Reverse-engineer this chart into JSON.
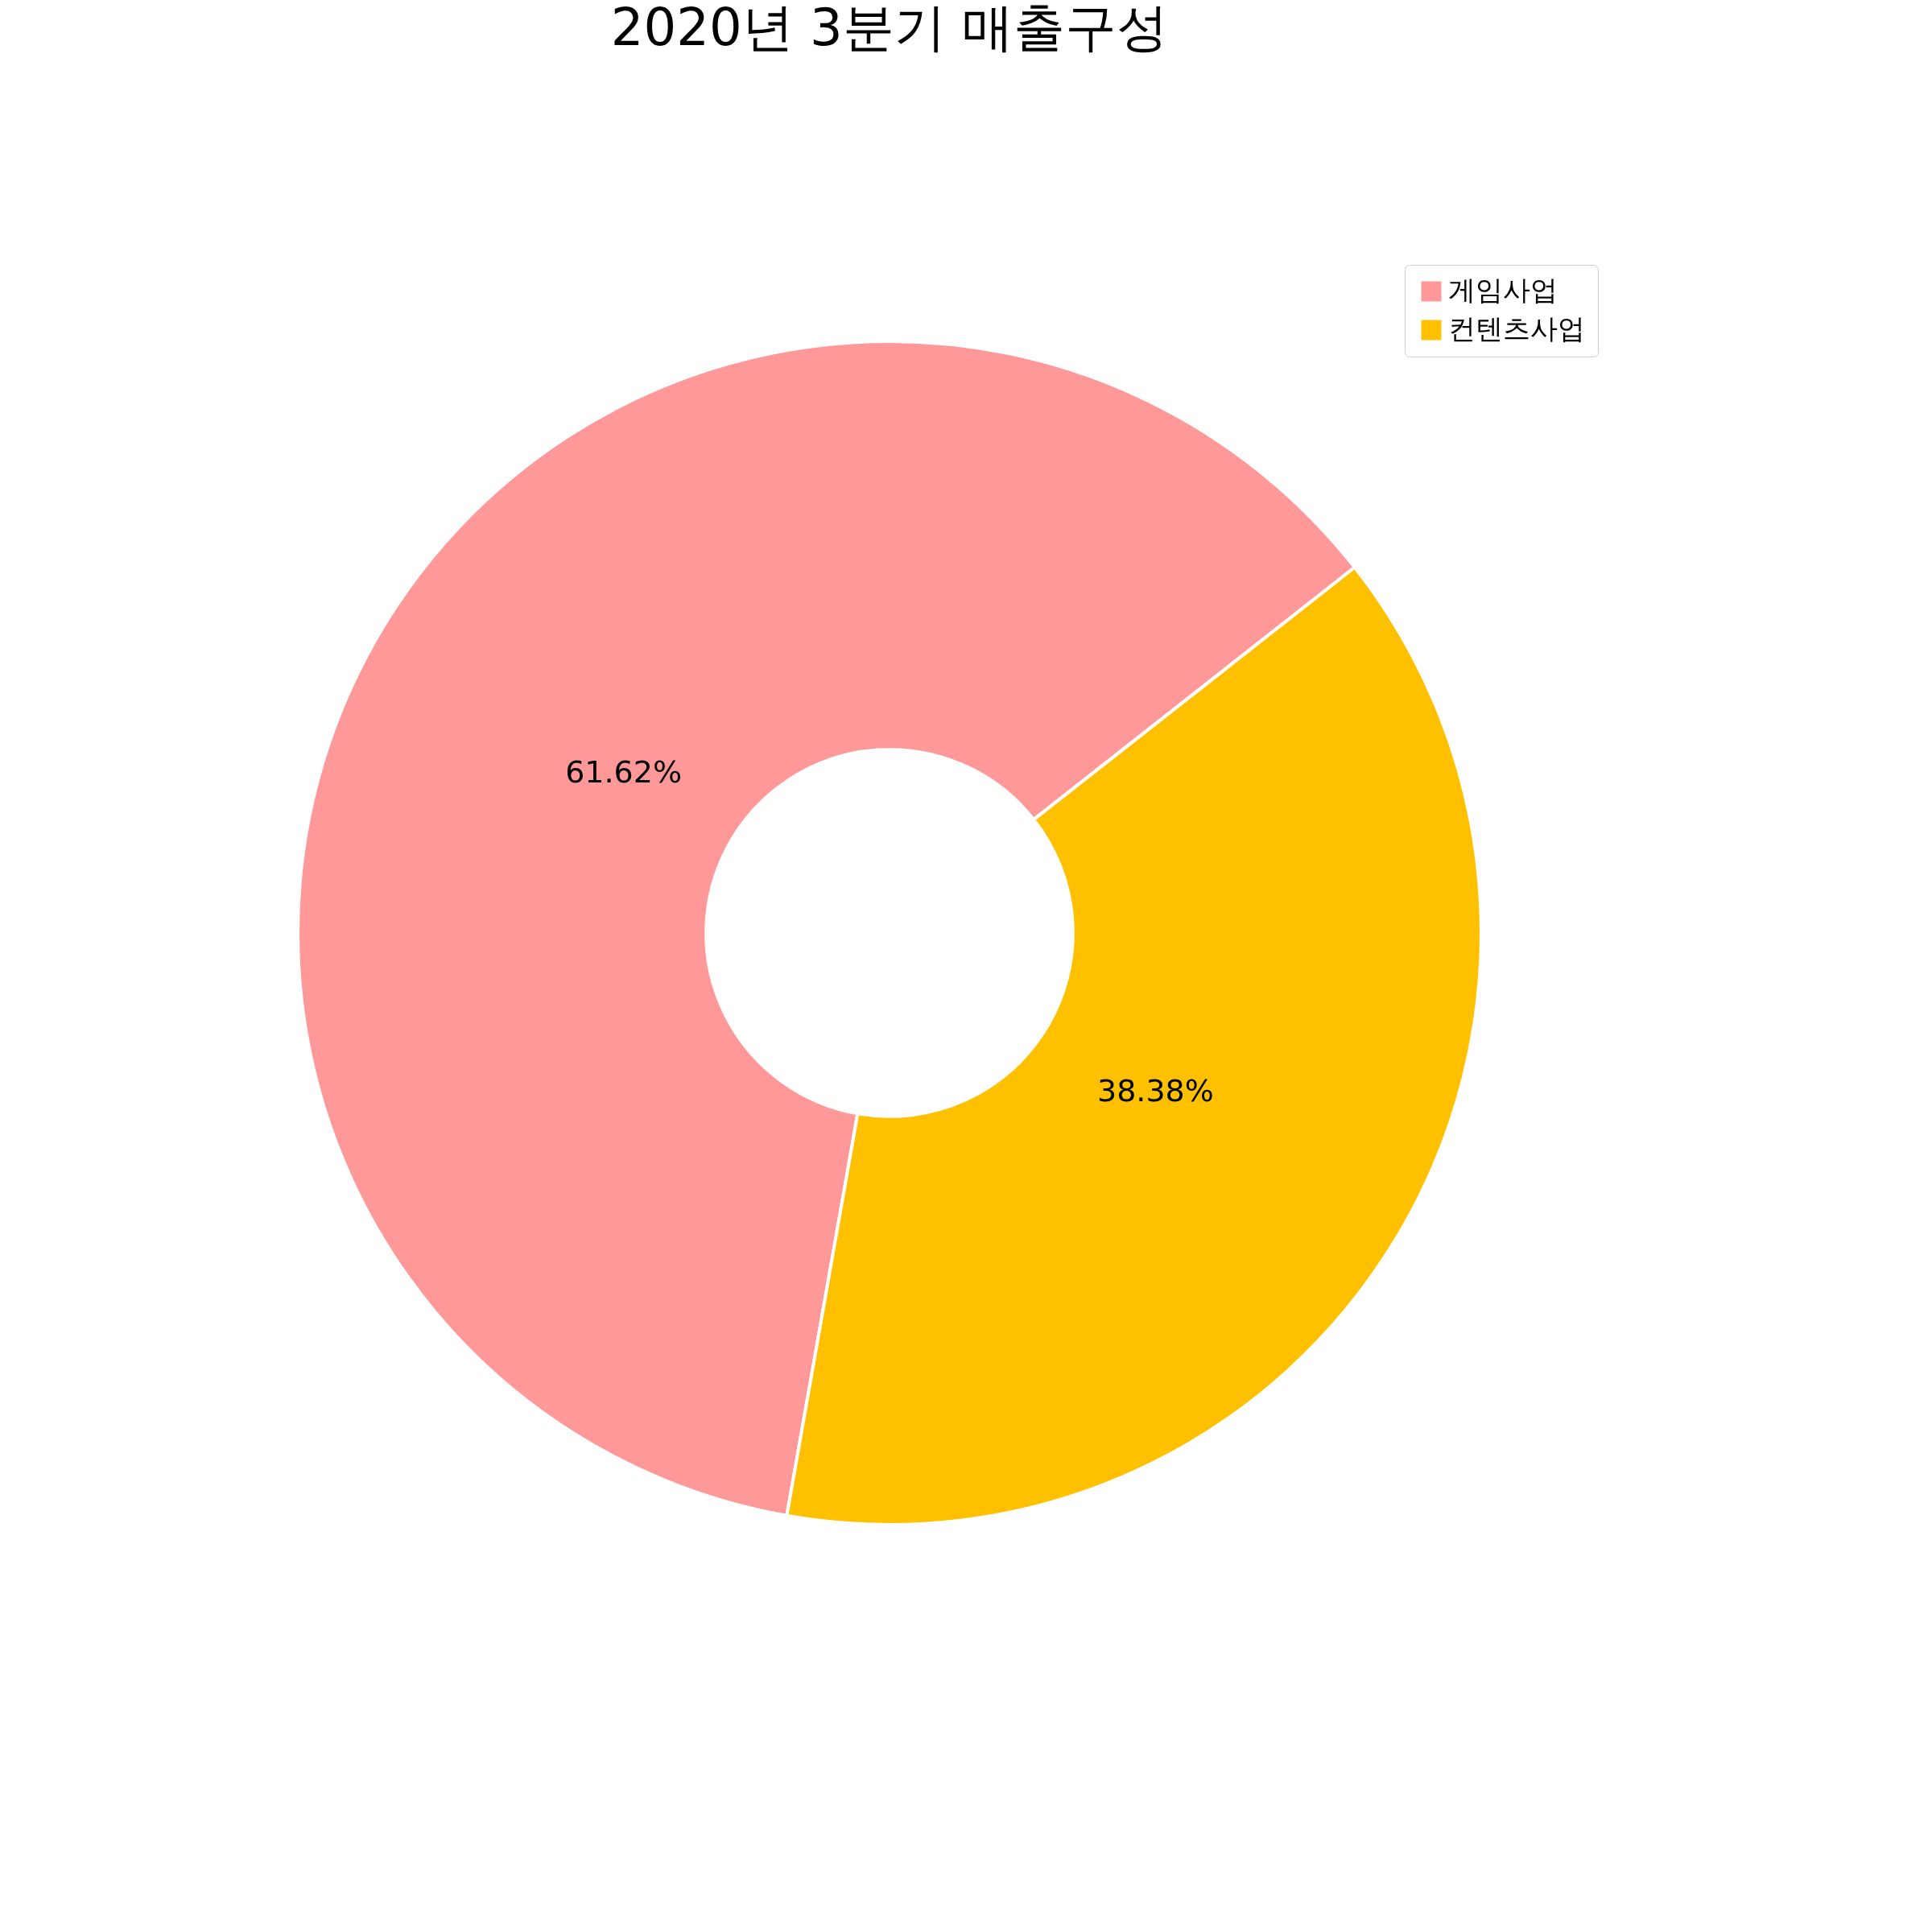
{
  "chart_data": {
    "type": "donut",
    "title": "2020년 3분기 매출구성",
    "categories": [
      "게임사업",
      "컨텐츠사업"
    ],
    "values": [
      61.62,
      38.38
    ],
    "colors": [
      "#ff9999",
      "#ffc000"
    ],
    "value_labels": [
      "61.62%",
      "38.38%"
    ],
    "legend": "top right"
  }
}
